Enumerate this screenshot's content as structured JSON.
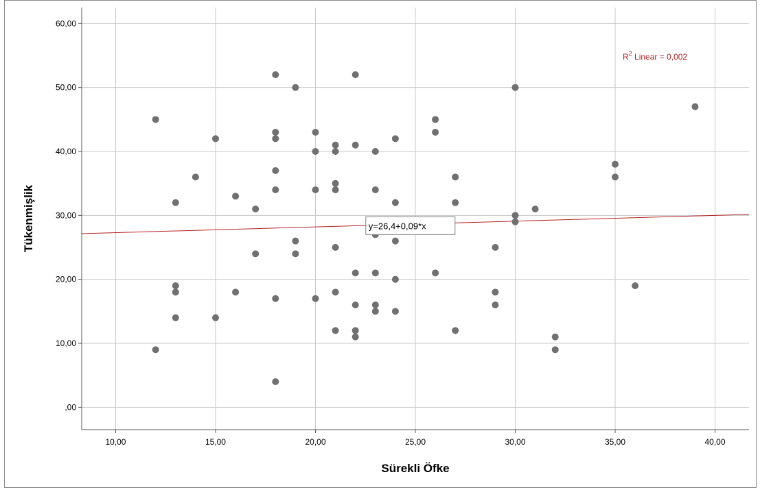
{
  "chart_data": {
    "type": "scatter",
    "title": "",
    "xlabel": "Sürekli Öfke",
    "ylabel": "Tükenmişlik",
    "xlim": [
      8.3,
      41.7
    ],
    "ylim": [
      -3.5,
      62.5
    ],
    "x_ticks": [
      10,
      15,
      20,
      25,
      30,
      35,
      40
    ],
    "x_tick_labels": [
      "10,00",
      "15,00",
      "20,00",
      "25,00",
      "30,00",
      "35,00",
      "40,00"
    ],
    "y_ticks": [
      0,
      10,
      20,
      30,
      40,
      50,
      60
    ],
    "y_tick_labels": [
      ",00",
      "10,00",
      "20,00",
      "30,00",
      "40,00",
      "50,00",
      "60,00"
    ],
    "grid": true,
    "point_color": "#707070",
    "line_color": "#b22222",
    "fit_line": {
      "intercept": 26.4,
      "slope": 0.09
    },
    "equation_label": "y=26,4+0,09*x",
    "equation_anchor": {
      "x": 23,
      "y": 28.5
    },
    "r2_label": {
      "prefix": "R",
      "superscript": "2",
      "text": " Linear = 0,002"
    },
    "points": [
      {
        "x": 12,
        "y": 45
      },
      {
        "x": 12,
        "y": 9
      },
      {
        "x": 13,
        "y": 32
      },
      {
        "x": 13,
        "y": 19
      },
      {
        "x": 13,
        "y": 18
      },
      {
        "x": 13,
        "y": 14
      },
      {
        "x": 14,
        "y": 36
      },
      {
        "x": 15,
        "y": 42
      },
      {
        "x": 15,
        "y": 14
      },
      {
        "x": 16,
        "y": 33
      },
      {
        "x": 16,
        "y": 18
      },
      {
        "x": 17,
        "y": 31
      },
      {
        "x": 17,
        "y": 24
      },
      {
        "x": 18,
        "y": 52
      },
      {
        "x": 18,
        "y": 43
      },
      {
        "x": 18,
        "y": 42
      },
      {
        "x": 18,
        "y": 37
      },
      {
        "x": 18,
        "y": 34
      },
      {
        "x": 18,
        "y": 17
      },
      {
        "x": 18,
        "y": 4
      },
      {
        "x": 19,
        "y": 50
      },
      {
        "x": 19,
        "y": 26
      },
      {
        "x": 19,
        "y": 24
      },
      {
        "x": 20,
        "y": 43
      },
      {
        "x": 20,
        "y": 40
      },
      {
        "x": 20,
        "y": 34
      },
      {
        "x": 20,
        "y": 17
      },
      {
        "x": 21,
        "y": 41
      },
      {
        "x": 21,
        "y": 40
      },
      {
        "x": 21,
        "y": 35
      },
      {
        "x": 21,
        "y": 34
      },
      {
        "x": 21,
        "y": 25
      },
      {
        "x": 21,
        "y": 18
      },
      {
        "x": 21,
        "y": 12
      },
      {
        "x": 22,
        "y": 52
      },
      {
        "x": 22,
        "y": 41
      },
      {
        "x": 22,
        "y": 21
      },
      {
        "x": 22,
        "y": 16
      },
      {
        "x": 22,
        "y": 12
      },
      {
        "x": 22,
        "y": 11
      },
      {
        "x": 23,
        "y": 40
      },
      {
        "x": 23,
        "y": 34
      },
      {
        "x": 23,
        "y": 29
      },
      {
        "x": 23,
        "y": 27
      },
      {
        "x": 23,
        "y": 21
      },
      {
        "x": 23,
        "y": 16
      },
      {
        "x": 23,
        "y": 15
      },
      {
        "x": 24,
        "y": 42
      },
      {
        "x": 24,
        "y": 32
      },
      {
        "x": 24,
        "y": 26
      },
      {
        "x": 24,
        "y": 20
      },
      {
        "x": 24,
        "y": 15
      },
      {
        "x": 26,
        "y": 45
      },
      {
        "x": 26,
        "y": 43
      },
      {
        "x": 26,
        "y": 21
      },
      {
        "x": 27,
        "y": 36
      },
      {
        "x": 27,
        "y": 32
      },
      {
        "x": 27,
        "y": 12
      },
      {
        "x": 29,
        "y": 25
      },
      {
        "x": 29,
        "y": 18
      },
      {
        "x": 29,
        "y": 16
      },
      {
        "x": 30,
        "y": 50
      },
      {
        "x": 30,
        "y": 30
      },
      {
        "x": 30,
        "y": 29
      },
      {
        "x": 31,
        "y": 31
      },
      {
        "x": 32,
        "y": 11
      },
      {
        "x": 32,
        "y": 9
      },
      {
        "x": 35,
        "y": 38
      },
      {
        "x": 35,
        "y": 36
      },
      {
        "x": 36,
        "y": 19
      },
      {
        "x": 39,
        "y": 47
      }
    ]
  }
}
